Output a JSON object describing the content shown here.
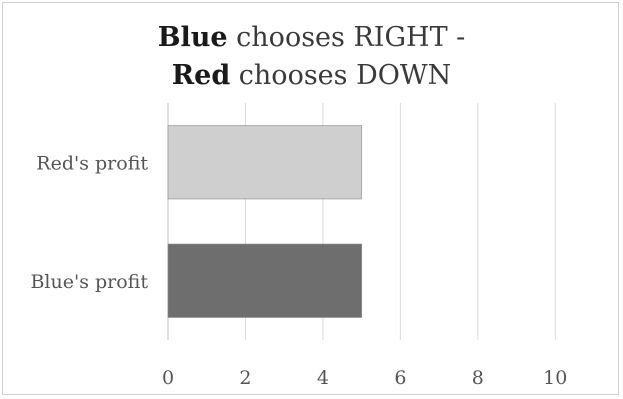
{
  "chart_data": {
    "type": "bar",
    "orientation": "horizontal",
    "title": {
      "line1": {
        "bold": "Blue",
        "rest": " chooses RIGHT -"
      },
      "line2": {
        "bold": "Red",
        "rest": " chooses DOWN"
      }
    },
    "categories": [
      "Red's profit",
      "Blue's profit"
    ],
    "values": [
      5,
      5
    ],
    "colors": [
      "#cfcfcf",
      "#6e6e6e"
    ],
    "xlim": [
      0,
      11
    ],
    "xticks": [
      0,
      2,
      4,
      6,
      8,
      10
    ],
    "grid": true,
    "legend": "none"
  }
}
